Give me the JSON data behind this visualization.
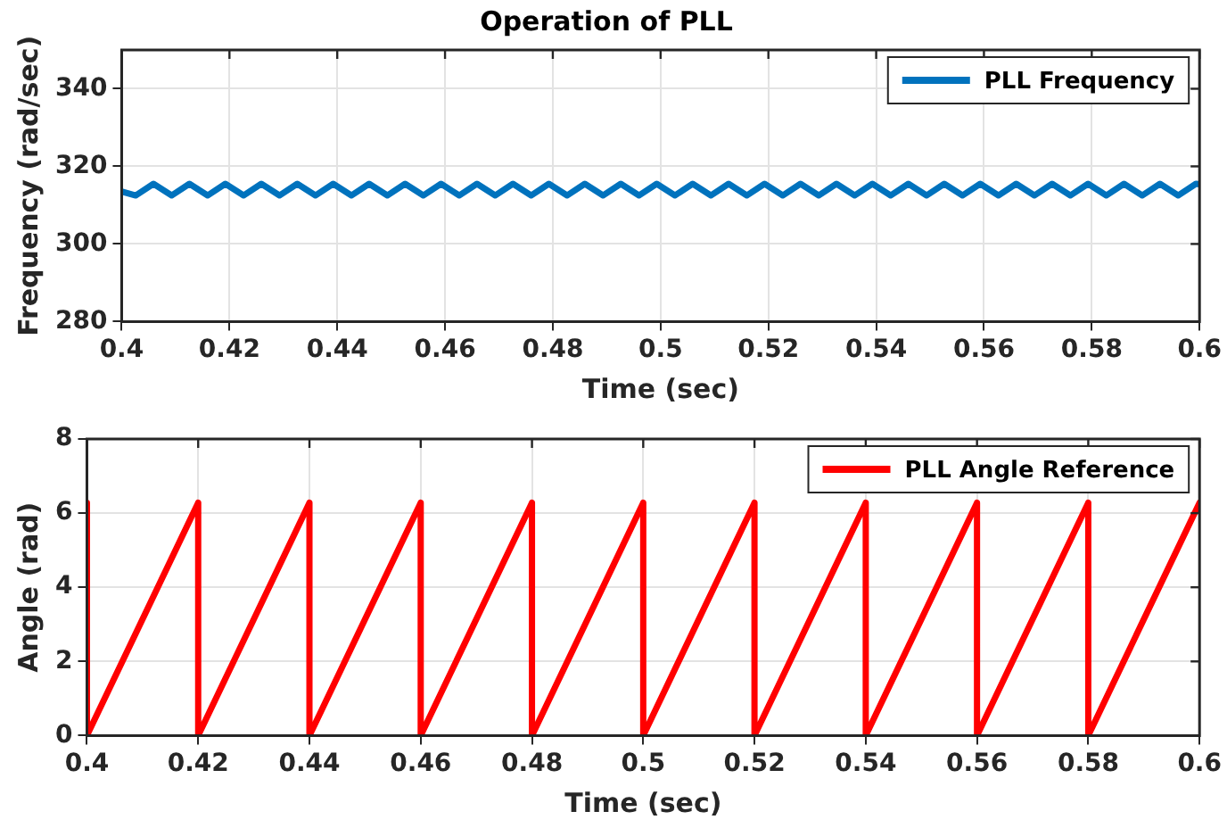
{
  "chart_data": [
    {
      "type": "line",
      "title": "Operation of PLL",
      "xlabel": "Time (sec)",
      "ylabel": "Frequency (rad/sec)",
      "xlim": [
        0.4,
        0.6
      ],
      "xticks": [
        0.4,
        0.42,
        0.44,
        0.46,
        0.48,
        0.5,
        0.52,
        0.54,
        0.56,
        0.58,
        0.6
      ],
      "ylim": [
        280,
        350
      ],
      "yticks": [
        280,
        300,
        320,
        340
      ],
      "grid": true,
      "legend": "top right",
      "marker": "none",
      "line_style": "solid",
      "series": [
        {
          "name": "PLL Frequency",
          "color": "#0072bd",
          "x": [
            0.4,
            0.4026,
            0.4059,
            0.40927,
            0.41257,
            0.41594,
            0.41924,
            0.42261,
            0.42591,
            0.42928,
            0.43258,
            0.43595,
            0.43925,
            0.44262,
            0.44592,
            0.44929,
            0.45259,
            0.45596,
            0.45926,
            0.46263,
            0.46593,
            0.4693,
            0.4726,
            0.47597,
            0.47927,
            0.48264,
            0.48594,
            0.48931,
            0.49261,
            0.49598,
            0.49928,
            0.50265,
            0.50595,
            0.50932,
            0.51262,
            0.51599,
            0.51929,
            0.52266,
            0.52596,
            0.52933,
            0.53263,
            0.536,
            0.5393,
            0.54267,
            0.54597,
            0.54934,
            0.55264,
            0.55601,
            0.55931,
            0.56268,
            0.56598,
            0.56935,
            0.57265,
            0.57602,
            0.57932,
            0.58269,
            0.58599,
            0.58936,
            0.59266,
            0.59603,
            0.59933,
            0.6
          ],
          "values": [
            313.5,
            312.5,
            315.5,
            312.5,
            315.5,
            312.5,
            315.5,
            312.5,
            315.5,
            312.5,
            315.5,
            312.5,
            315.5,
            312.5,
            315.5,
            312.5,
            315.5,
            312.5,
            315.5,
            312.5,
            315.5,
            312.5,
            315.5,
            312.5,
            315.5,
            312.5,
            315.5,
            312.5,
            315.5,
            312.5,
            315.5,
            312.5,
            315.5,
            312.5,
            315.5,
            312.5,
            315.5,
            312.5,
            315.5,
            312.5,
            315.5,
            312.5,
            315.5,
            312.5,
            315.5,
            312.5,
            315.5,
            312.5,
            315.5,
            312.5,
            315.5,
            312.5,
            315.5,
            312.5,
            315.5,
            312.5,
            315.5,
            312.5,
            315.5,
            312.5,
            315.5,
            315.4
          ]
        }
      ]
    },
    {
      "type": "line",
      "xlabel": "Time (sec)",
      "ylabel": "Angle (rad)",
      "xlim": [
        0.4,
        0.6
      ],
      "xticks": [
        0.4,
        0.42,
        0.44,
        0.46,
        0.48,
        0.5,
        0.52,
        0.54,
        0.56,
        0.58,
        0.6
      ],
      "ylim": [
        0,
        8
      ],
      "yticks": [
        0,
        2,
        4,
        6,
        8
      ],
      "grid": true,
      "legend": "top right",
      "marker": "none",
      "line_style": "solid",
      "series": [
        {
          "name": "PLL Angle Reference",
          "color": "#ff0000",
          "x": [
            0.4,
            0.4,
            0.42,
            0.42,
            0.44,
            0.44,
            0.46,
            0.46,
            0.48,
            0.48,
            0.5,
            0.5,
            0.52,
            0.52,
            0.54,
            0.54,
            0.56,
            0.56,
            0.58,
            0.58,
            0.6
          ],
          "values": [
            6.28,
            0,
            6.28,
            0,
            6.28,
            0,
            6.28,
            0,
            6.28,
            0,
            6.28,
            0,
            6.28,
            0,
            6.28,
            0,
            6.28,
            0,
            6.28,
            0,
            6.28
          ]
        }
      ]
    }
  ]
}
